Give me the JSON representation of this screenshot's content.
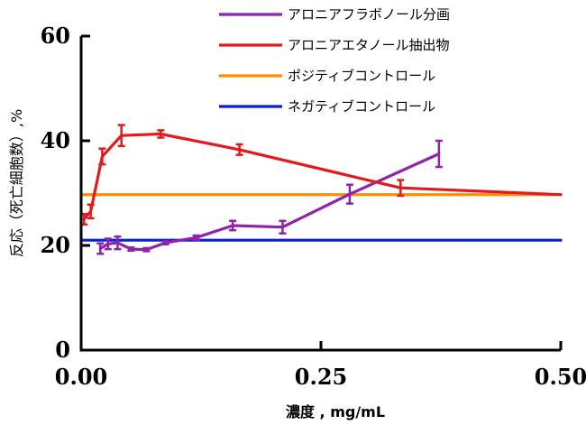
{
  "chart_data": {
    "type": "line",
    "title": "",
    "xlabel": "濃度 , mg/mL",
    "ylabel": "反応（死亡細胞数）,%",
    "xlim": [
      0,
      0.5
    ],
    "ylim": [
      0,
      60
    ],
    "xticks": [
      0,
      0.25,
      0.5
    ],
    "xtick_labels": [
      "0.00",
      "0.25",
      "0.50"
    ],
    "yticks": [
      0,
      20,
      40,
      60
    ],
    "ytick_labels": [
      "0",
      "20",
      "40",
      "60"
    ],
    "grid": false,
    "legend_position": "top-right",
    "series": [
      {
        "name": "アロニアフラボノール分画",
        "color": "#8E24AA",
        "points": [
          {
            "x": 0.02,
            "y": 19.4,
            "err": 1.0
          },
          {
            "x": 0.028,
            "y": 20.3,
            "err": 1.0
          },
          {
            "x": 0.038,
            "y": 20.5,
            "err": 1.2
          },
          {
            "x": 0.052,
            "y": 19.3,
            "err": 0.3
          },
          {
            "x": 0.068,
            "y": 19.2,
            "err": 0.3
          },
          {
            "x": 0.088,
            "y": 20.5,
            "err": 0.3
          },
          {
            "x": 0.12,
            "y": 21.5,
            "err": 0.4
          },
          {
            "x": 0.158,
            "y": 23.8,
            "err": 0.9
          },
          {
            "x": 0.21,
            "y": 23.5,
            "err": 1.2
          },
          {
            "x": 0.28,
            "y": 29.8,
            "err": 1.8
          },
          {
            "x": 0.373,
            "y": 37.5,
            "err": 2.5
          }
        ]
      },
      {
        "name": "アロニアエタノール抽出物",
        "color": "#E31A1C",
        "points": [
          {
            "x": 0.003,
            "y": 25.0,
            "err": 1.0
          },
          {
            "x": 0.01,
            "y": 26.5,
            "err": 1.3
          },
          {
            "x": 0.022,
            "y": 37.0,
            "err": 1.5
          },
          {
            "x": 0.042,
            "y": 41.0,
            "err": 2.0
          },
          {
            "x": 0.083,
            "y": 41.3,
            "err": 0.7
          },
          {
            "x": 0.165,
            "y": 38.3,
            "err": 1.0
          },
          {
            "x": 0.333,
            "y": 31.0,
            "err": 1.5
          },
          {
            "x": 0.5,
            "y": 29.7,
            "err": 0
          }
        ]
      },
      {
        "name": "ポジティブコントロール",
        "color": "#FF8C00",
        "points": [
          {
            "x": 0.0,
            "y": 29.7,
            "err": 0
          },
          {
            "x": 0.5,
            "y": 29.7,
            "err": 0
          }
        ]
      },
      {
        "name": "ネガティブコントロール",
        "color": "#0A1ED2",
        "points": [
          {
            "x": 0.0,
            "y": 21.0,
            "err": 0
          },
          {
            "x": 0.5,
            "y": 21.0,
            "err": 0
          }
        ]
      }
    ]
  }
}
